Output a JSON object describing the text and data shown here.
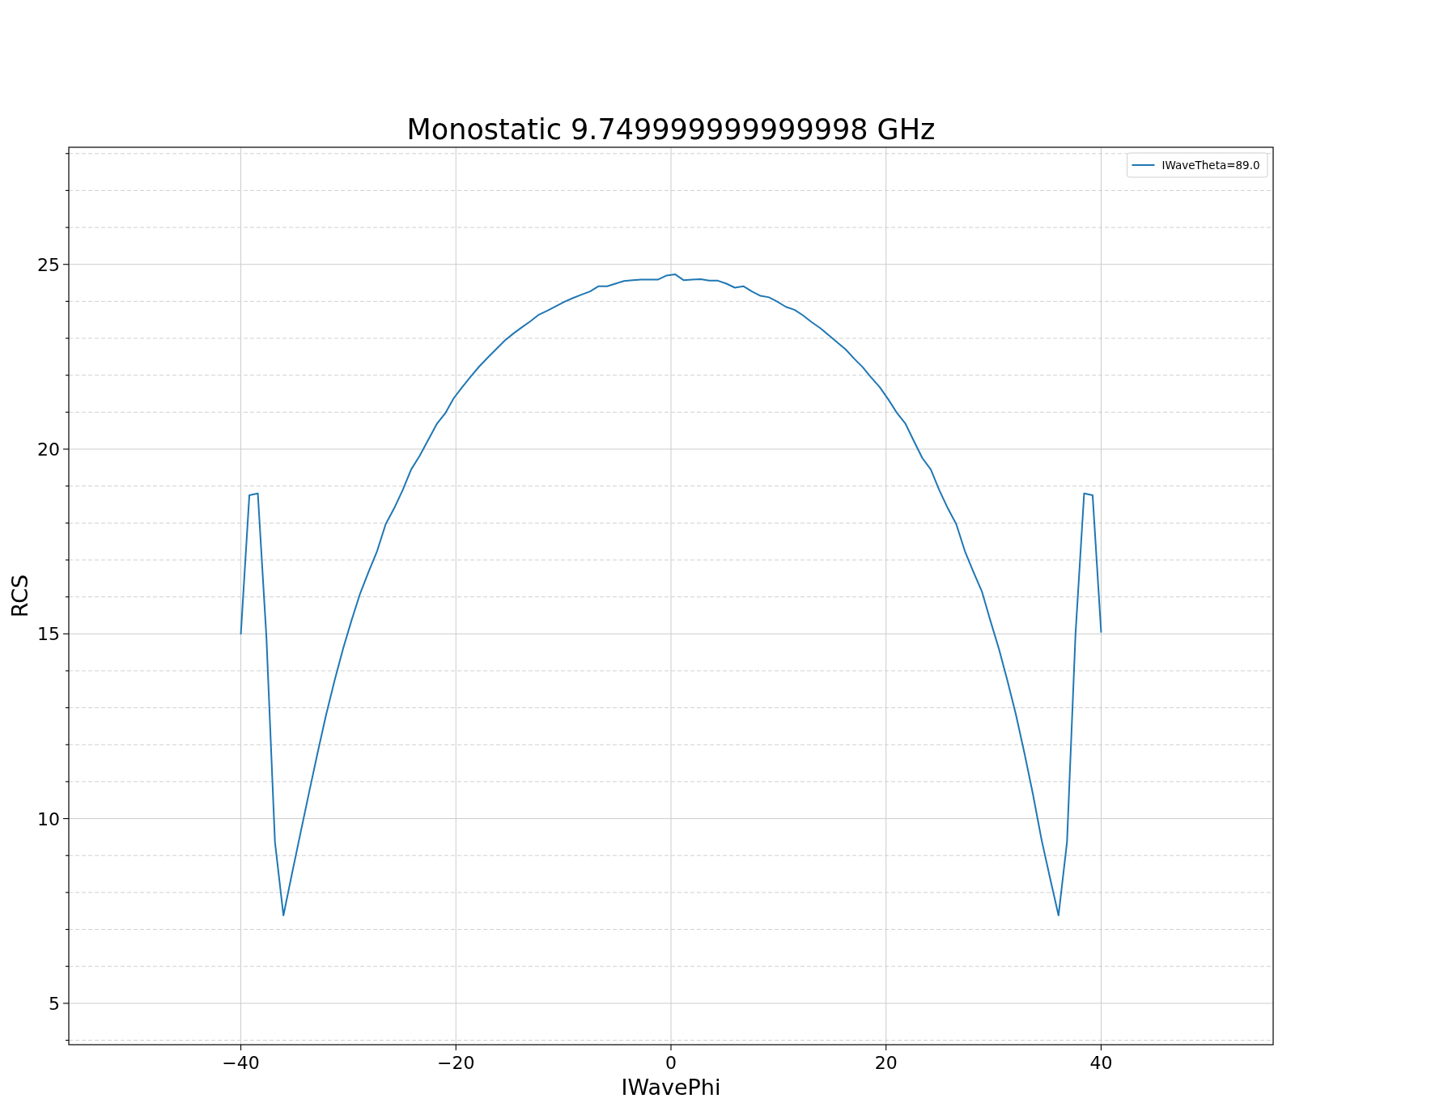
{
  "chart_data": {
    "type": "line",
    "title": "Monostatic 9.749999999999998 GHz",
    "xlabel": "IWavePhi",
    "ylabel": "RCS",
    "xlim": [
      -56,
      56
    ],
    "ylim": [
      3.88,
      28.17
    ],
    "xticks": [
      {
        "value": -40,
        "label": "−40"
      },
      {
        "value": -20,
        "label": "−20"
      },
      0,
      20,
      40
    ],
    "yticks": [
      {
        "value": 4,
        "label": null
      },
      5,
      {
        "value": 6,
        "label": null
      },
      {
        "value": 7,
        "label": null
      },
      {
        "value": 8,
        "label": null
      },
      {
        "value": 9,
        "label": null
      },
      10,
      {
        "value": 11,
        "label": null
      },
      {
        "value": 12,
        "label": null
      },
      {
        "value": 13,
        "label": null
      },
      {
        "value": 14,
        "label": null
      },
      15,
      {
        "value": 16,
        "label": null
      },
      {
        "value": 17,
        "label": null
      },
      {
        "value": 18,
        "label": null
      },
      {
        "value": 19,
        "label": null
      },
      20,
      {
        "value": 21,
        "label": null
      },
      {
        "value": 22,
        "label": null
      },
      {
        "value": 23,
        "label": null
      },
      {
        "value": 24,
        "label": null
      },
      25,
      {
        "value": 26,
        "label": null
      },
      {
        "value": 27,
        "label": null
      },
      {
        "value": 28,
        "label": null
      }
    ],
    "grid": true,
    "legend": "top right",
    "x": [
      -40,
      -39.21,
      -38.42,
      -37.62,
      -36.83,
      -36.04,
      -35.25,
      -34.46,
      -33.66,
      -32.87,
      -32.08,
      -31.29,
      -30.5,
      -29.7,
      -28.91,
      -28.12,
      -27.33,
      -26.53,
      -25.74,
      -24.95,
      -24.16,
      -23.37,
      -22.57,
      -21.78,
      -20.99,
      -20.2,
      -19.41,
      -18.61,
      -17.82,
      -17.03,
      -16.24,
      -15.45,
      -14.65,
      -13.86,
      -13.07,
      -12.28,
      -11.49,
      -10.69,
      -9.9,
      -9.11,
      -8.32,
      -7.52,
      -6.73,
      -5.94,
      -5.15,
      -4.36,
      -3.56,
      -2.77,
      -1.98,
      -1.19,
      -0.4,
      0.4,
      1.19,
      1.98,
      2.77,
      3.56,
      4.36,
      5.15,
      5.94,
      6.73,
      7.52,
      8.32,
      9.11,
      9.9,
      10.69,
      11.49,
      12.28,
      13.07,
      13.86,
      14.65,
      15.45,
      16.24,
      17.03,
      17.82,
      18.61,
      19.41,
      20.2,
      20.99,
      21.78,
      22.57,
      23.37,
      24.16,
      24.95,
      25.74,
      26.53,
      27.33,
      28.12,
      28.91,
      29.7,
      30.5,
      31.29,
      32.08,
      32.87,
      33.66,
      34.46,
      35.25,
      36.04,
      36.83,
      37.62,
      38.42,
      39.21,
      40
    ],
    "series": [
      {
        "name": "IWaveTheta=89.0",
        "color": "#1f77b4",
        "values": [
          15.0,
          18.75,
          18.8,
          14.9,
          9.37,
          7.38,
          8.5,
          9.6,
          10.7,
          11.77,
          12.8,
          13.73,
          14.59,
          15.37,
          16.09,
          16.68,
          17.24,
          17.97,
          18.4,
          18.89,
          19.45,
          19.82,
          20.25,
          20.68,
          20.97,
          21.38,
          21.68,
          21.97,
          22.24,
          22.48,
          22.71,
          22.94,
          23.13,
          23.3,
          23.46,
          23.64,
          23.75,
          23.87,
          23.99,
          24.09,
          24.18,
          24.27,
          24.41,
          24.41,
          24.48,
          24.55,
          24.57,
          24.59,
          24.59,
          24.59,
          24.7,
          24.73,
          24.57,
          24.59,
          24.6,
          24.56,
          24.56,
          24.48,
          24.37,
          24.41,
          24.27,
          24.15,
          24.11,
          23.99,
          23.85,
          23.77,
          23.62,
          23.44,
          23.28,
          23.09,
          22.89,
          22.7,
          22.45,
          22.22,
          21.94,
          21.68,
          21.35,
          20.99,
          20.7,
          20.23,
          19.76,
          19.45,
          18.89,
          18.4,
          17.97,
          17.24,
          16.68,
          16.15,
          15.36,
          14.59,
          13.73,
          12.81,
          11.77,
          10.66,
          9.43,
          8.39,
          7.38,
          9.37,
          15.0,
          18.8,
          18.75,
          15.05
        ]
      }
    ]
  }
}
